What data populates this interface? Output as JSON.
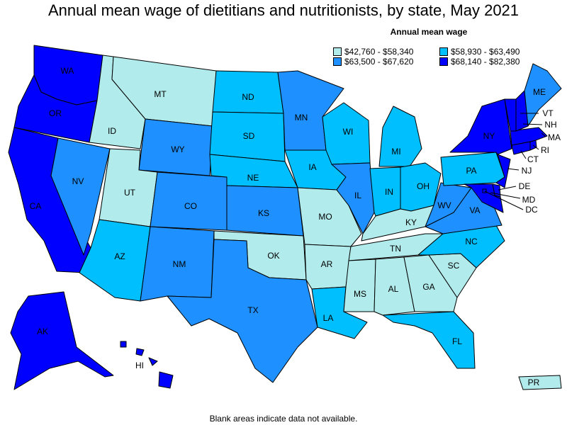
{
  "title": "Annual mean wage of dietitians and nutritionists, by state, May 2021",
  "legend": {
    "title": "Annual mean wage",
    "bins": [
      {
        "label": "$42,760 - $58,340",
        "color": "#b2ebeb"
      },
      {
        "label": "$58,930 - $63,490",
        "color": "#00bfff"
      },
      {
        "label": "$63,500 - $67,620",
        "color": "#1e90ff"
      },
      {
        "label": "$68,140 - $82,380",
        "color": "#0000ff"
      }
    ]
  },
  "footnote": "Blank areas indicate data not available.",
  "states": {
    "WA": 3,
    "OR": 3,
    "CA": 3,
    "NV": 2,
    "ID": 0,
    "MT": 0,
    "WY": 2,
    "UT": 0,
    "CO": 2,
    "AZ": 1,
    "NM": 2,
    "ND": 1,
    "SD": 1,
    "NE": 1,
    "KS": 2,
    "OK": 0,
    "TX": 2,
    "MN": 2,
    "IA": 1,
    "MO": 0,
    "AR": 0,
    "LA": 1,
    "WI": 1,
    "IL": 2,
    "MI": 1,
    "IN": 1,
    "OH": 1,
    "KY": 0,
    "TN": 0,
    "MS": 0,
    "AL": 0,
    "GA": 0,
    "FL": 1,
    "SC": 0,
    "NC": 1,
    "VA": 2,
    "WV": 2,
    "PA": 1,
    "NY": 3,
    "ME": 2,
    "VT": 3,
    "NH": 3,
    "MA": 3,
    "RI": 3,
    "CT": 3,
    "NJ": 3,
    "DE": 3,
    "MD": 3,
    "DC": 3,
    "AK": 3,
    "HI": 3,
    "PR": 0
  }
}
